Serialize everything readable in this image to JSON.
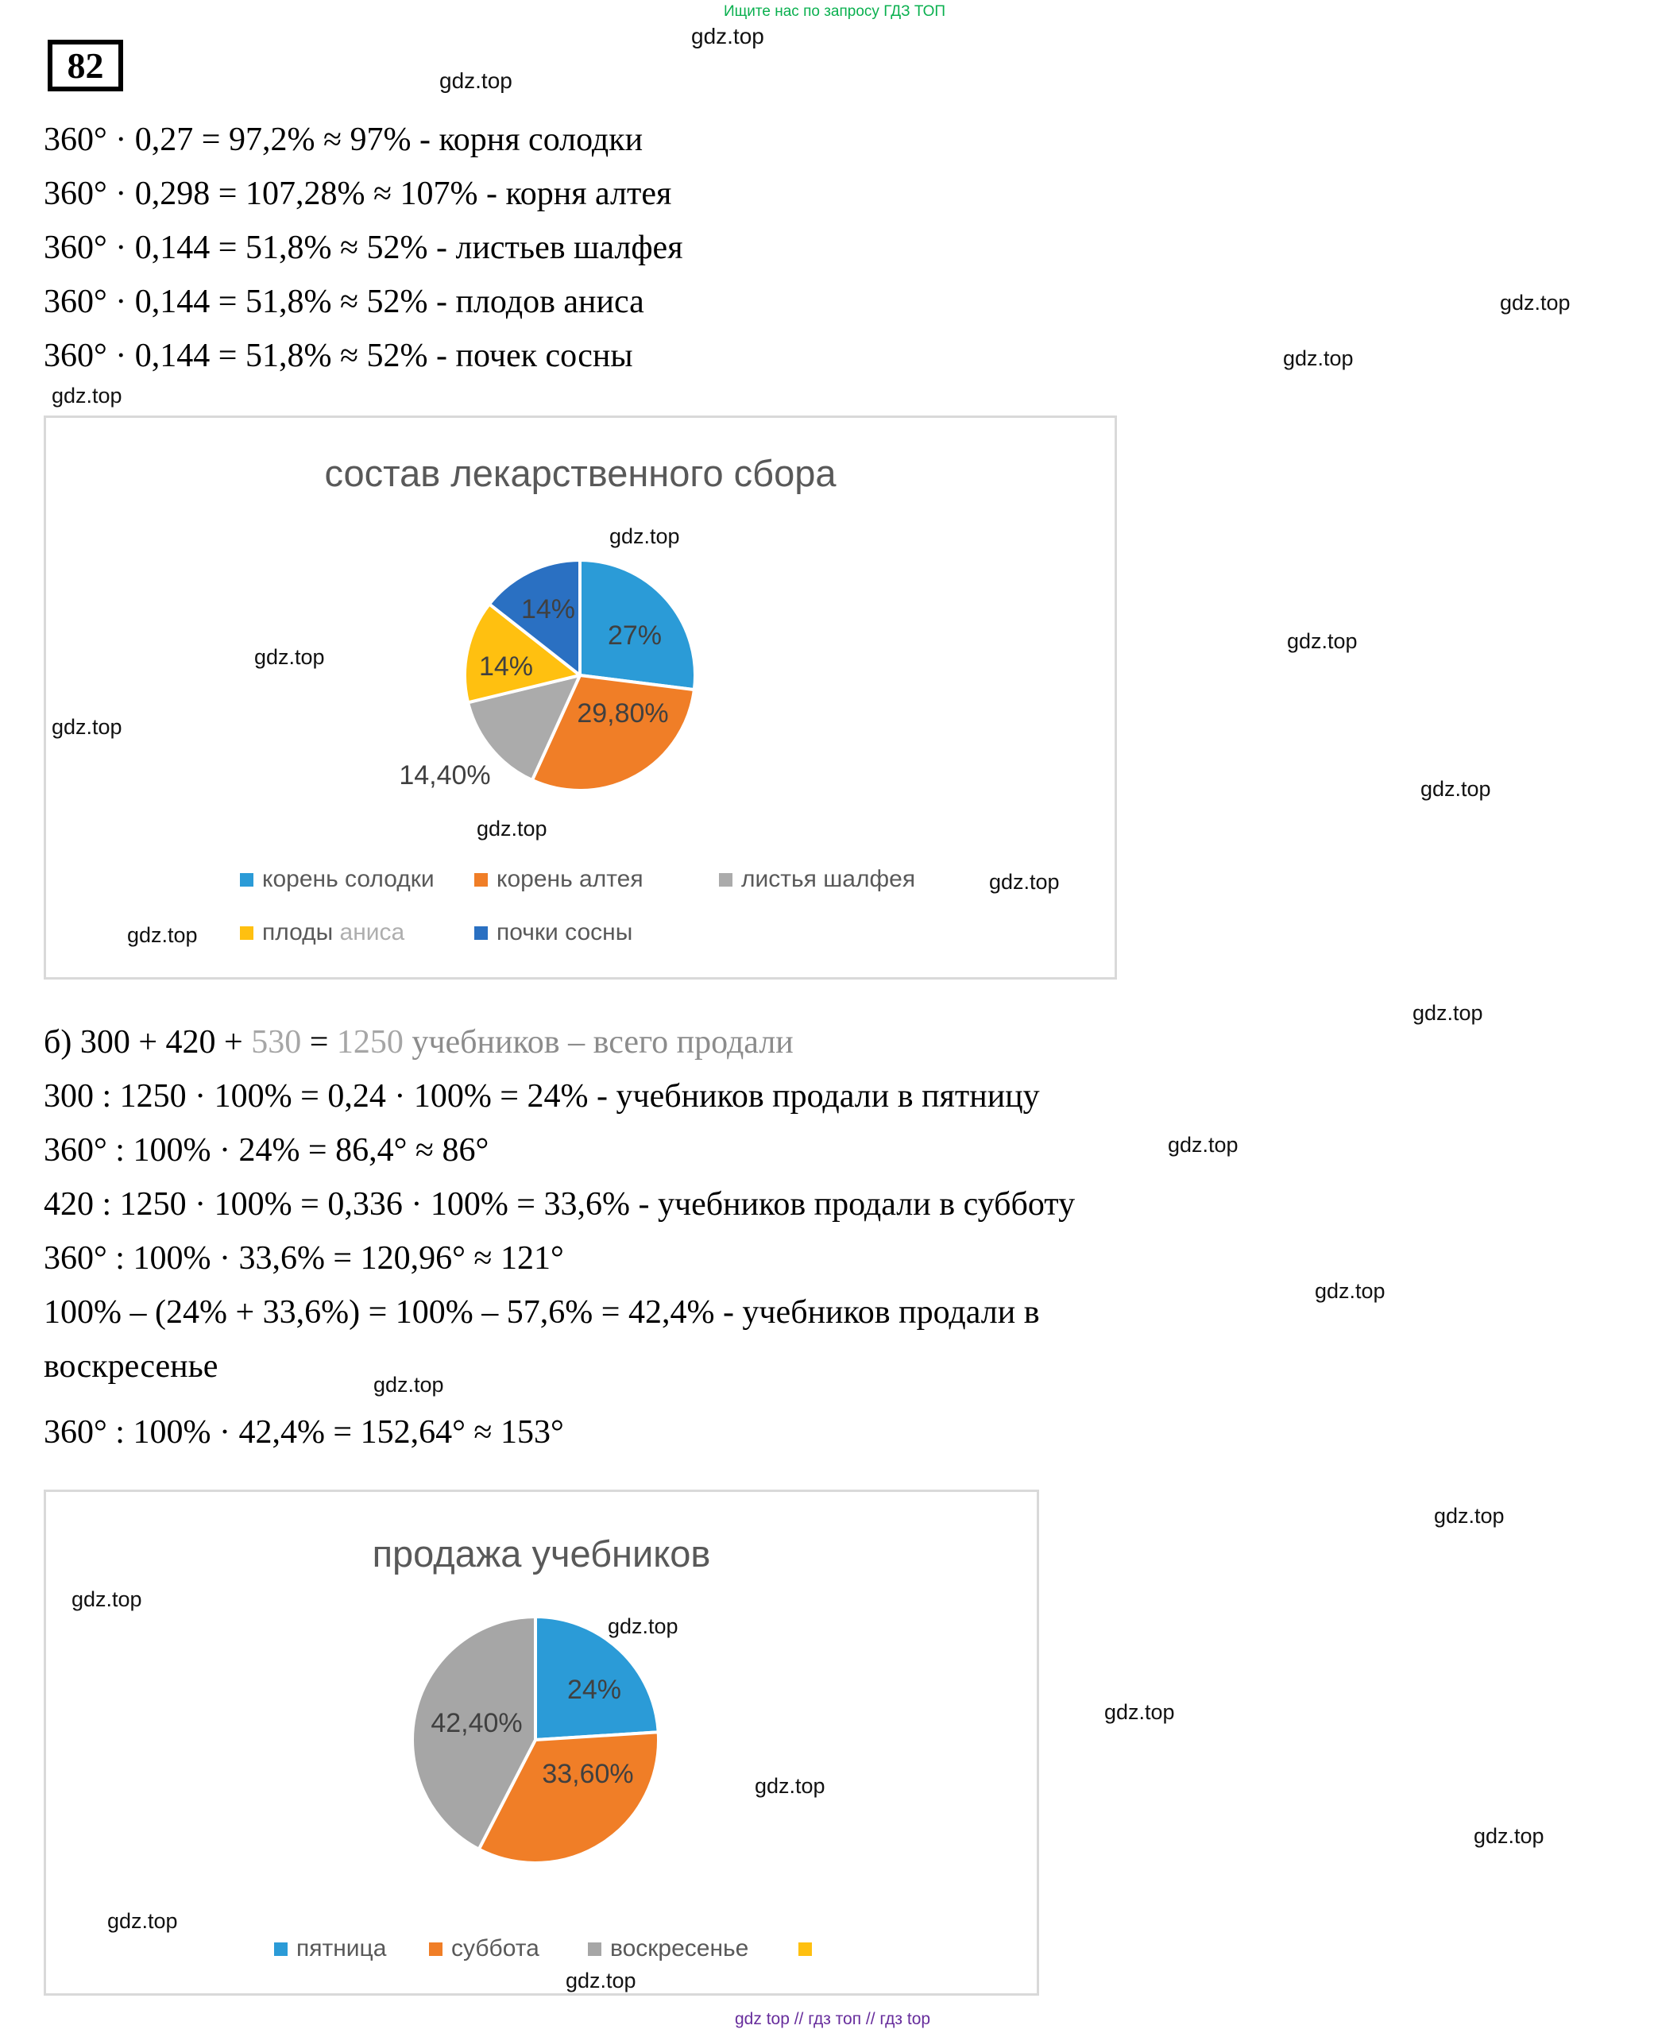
{
  "watermark": "gdz.top",
  "promo": {
    "text": "Ищите нас по запросу ГДЗ ТОП",
    "color": "#0ab04f"
  },
  "footer": {
    "text": "gdz top  //  гдз топ  //  гдз top",
    "color": "#672d9c"
  },
  "problem_number": "82",
  "part_a_lines": [
    "360° · 0,27 = 97,2% ≈ 97% - корня солодки",
    "360° · 0,298 = 107,28% ≈ 107% - корня алтея",
    "360° · 0,144 = 51,8% ≈ 52% - листьев шалфея",
    "360° · 0,144 = 51,8% ≈ 52% - плодов аниса",
    "360° · 0,144 = 51,8% ≈ 52% - почек сосны"
  ],
  "part_b": {
    "line1_segments": [
      {
        "text": "б) 300 + 420 + "
      },
      {
        "text": "530"
      },
      {
        "text": " = "
      },
      {
        "text": "1250"
      },
      {
        "text": " учебников – всего продали"
      }
    ],
    "lines": [
      "300 : 1250 · 100% = 0,24 · 100% = 24% - учебников продали в пятницу",
      "360° : 100% · 24% = 86,4° ≈ 86°",
      "420 : 1250 · 100% = 0,336 · 100% = 33,6% - учебников продали в субботу",
      "360° : 100% · 33,6% = 120,96° ≈ 121°",
      "100% – (24% + 33,6%) = 100% – 57,6% = 42,4% - учебников продали в",
      "воскресенье",
      "360° : 100% · 42,4% = 152,64° ≈ 153°"
    ]
  },
  "chart_data": [
    {
      "type": "pie",
      "title": "состав лекарственного сбора",
      "start_angle_deg": 0,
      "clockwise": true,
      "legend_position": "bottom",
      "slices": [
        {
          "label": "корень солодки",
          "value": 27,
          "color": "#2b9bd7",
          "data_label": "27%",
          "label_offset": [
            69,
            -51
          ],
          "label_pos": "inside"
        },
        {
          "label": "корень алтея",
          "value": 29.8,
          "color": "#f07e27",
          "data_label": "29,80%",
          "label_offset": [
            54,
            47
          ],
          "label_pos": "inside"
        },
        {
          "label": "листья шалфея",
          "value": 14.4,
          "color": "#ababab",
          "data_label": "14,40%",
          "label_offset": [
            -170,
            125
          ],
          "label_pos": "outside"
        },
        {
          "label": "плоды аниса",
          "value": 14.4,
          "color": "#ffc010",
          "data_label": "14%",
          "label_offset": [
            -93,
            -12
          ],
          "label_pos": "inside",
          "label_parts": [
            "плоды ",
            "аниса"
          ]
        },
        {
          "label": "почки сосны",
          "value": 14.4,
          "color": "#2a70c2",
          "data_label": "14%",
          "label_offset": [
            -40,
            -84
          ],
          "label_pos": "inside"
        }
      ]
    },
    {
      "type": "pie",
      "title": "продажа учебников",
      "start_angle_deg": 0,
      "clockwise": true,
      "legend_position": "bottom",
      "slices": [
        {
          "label": "пятница",
          "value": 24,
          "color": "#2b9bd7",
          "data_label": "24%",
          "label_offset": [
            74,
            -64
          ],
          "label_pos": "inside"
        },
        {
          "label": "суббота",
          "value": 33.6,
          "color": "#f07e27",
          "data_label": "33,60%",
          "label_offset": [
            66,
            42
          ],
          "label_pos": "inside"
        },
        {
          "label": "воскресенье",
          "value": 42.4,
          "color": "#a6a6a6",
          "data_label": "42,40%",
          "label_offset": [
            -74,
            -22
          ],
          "label_pos": "inside"
        },
        {
          "label": "",
          "value": 0,
          "color": "#ffc010"
        }
      ]
    }
  ]
}
